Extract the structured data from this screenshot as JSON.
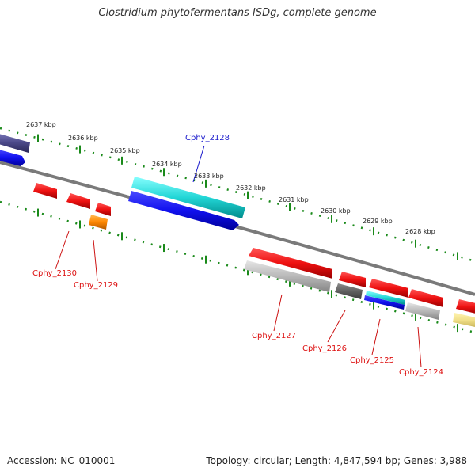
{
  "title": "Clostridium phytofermentans ISDg, complete genome",
  "footer": {
    "accession": "Accession: NC_010001",
    "summary": "Topology: circular; Length: 4,847,594 bp; Genes: 3,988"
  },
  "scale_labels": [
    "2637 kbp",
    "2636 kbp",
    "2635 kbp",
    "2634 kbp",
    "2633 kbp",
    "2632 kbp",
    "2631 kbp",
    "2630 kbp",
    "2629 kbp",
    "2628 kbp"
  ],
  "genes": [
    {
      "label": "Cphy_2128",
      "color": "#1a1acc"
    },
    {
      "label": "Cphy_2130",
      "color": "#dd1111"
    },
    {
      "label": "Cphy_2129",
      "color": "#dd1111"
    },
    {
      "label": "Cphy_2127",
      "color": "#dd1111"
    },
    {
      "label": "Cphy_2126",
      "color": "#dd1111"
    },
    {
      "label": "Cphy_2125",
      "color": "#dd1111"
    },
    {
      "label": "Cphy_2124",
      "color": "#dd1111"
    }
  ],
  "colors": {
    "backbone": "#7a7a7a",
    "scale_ticks": "#1a8a1a",
    "forward_strand": "#ee1111",
    "cds": "#1010ee",
    "gene_track": "#00cccc",
    "other": "#ff8800"
  }
}
